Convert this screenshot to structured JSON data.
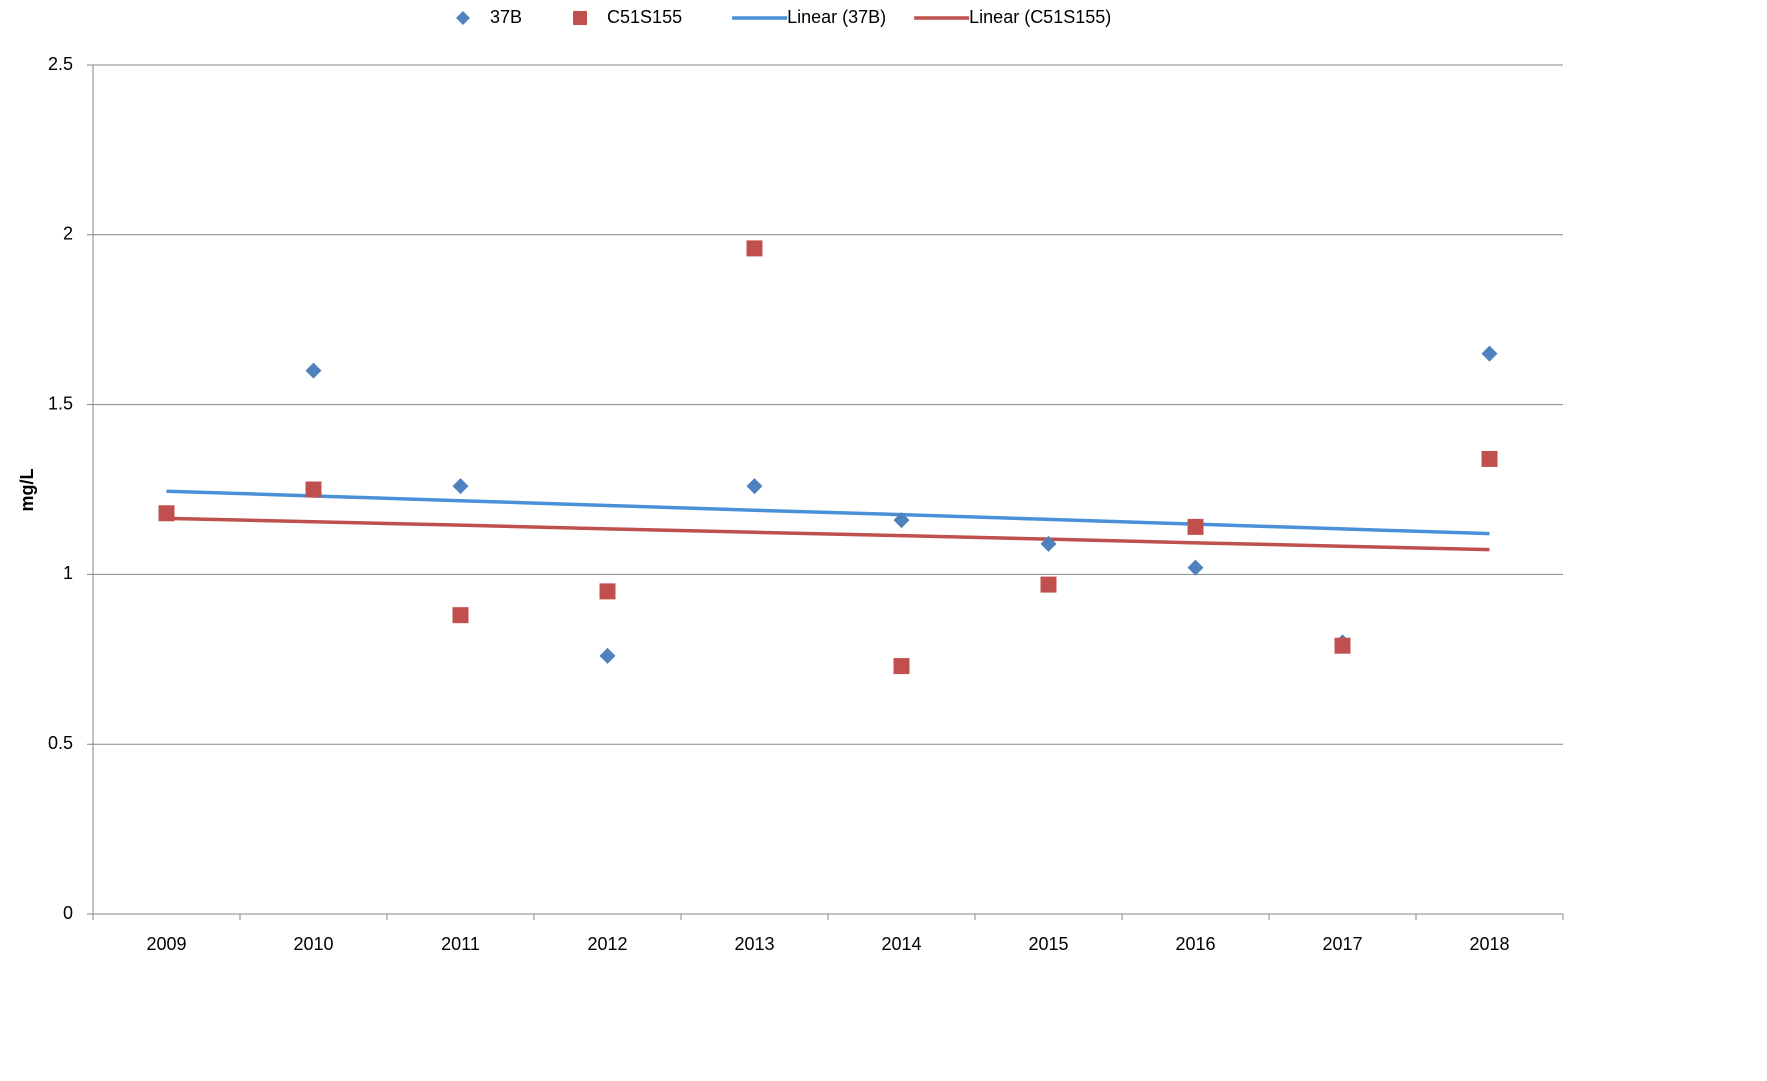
{
  "chart_data": {
    "type": "line",
    "y_label": "mg/L",
    "categories": [
      "2009",
      "2010",
      "2011",
      "2012",
      "2013",
      "2014",
      "2015",
      "2016",
      "2017",
      "2018"
    ],
    "series": [
      {
        "name": "37B",
        "color": "#4f81bd",
        "style": "marker",
        "marker": "diamond",
        "values": [
          1.18,
          1.6,
          1.26,
          0.76,
          1.26,
          1.16,
          1.09,
          1.02,
          0.8,
          1.65
        ]
      },
      {
        "name": "C51S155",
        "color": "#c0504d",
        "style": "marker",
        "marker": "square",
        "values": [
          1.18,
          1.25,
          0.88,
          0.95,
          1.96,
          0.73,
          0.97,
          1.14,
          0.79,
          1.34
        ]
      },
      {
        "name": "Linear (37B)",
        "color": "#4a90d9",
        "style": "line",
        "values": [
          1.245,
          1.231,
          1.217,
          1.203,
          1.189,
          1.176,
          1.162,
          1.148,
          1.134,
          1.12
        ]
      },
      {
        "name": "Linear (C51S155)",
        "color": "#c0504d",
        "style": "line",
        "values": [
          1.165,
          1.155,
          1.145,
          1.134,
          1.124,
          1.114,
          1.104,
          1.093,
          1.083,
          1.073
        ]
      }
    ],
    "ylim": [
      0,
      2.5
    ],
    "yticks": [
      0,
      0.5,
      1,
      1.5,
      2,
      2.5
    ],
    "grid": true,
    "legend": "top"
  }
}
